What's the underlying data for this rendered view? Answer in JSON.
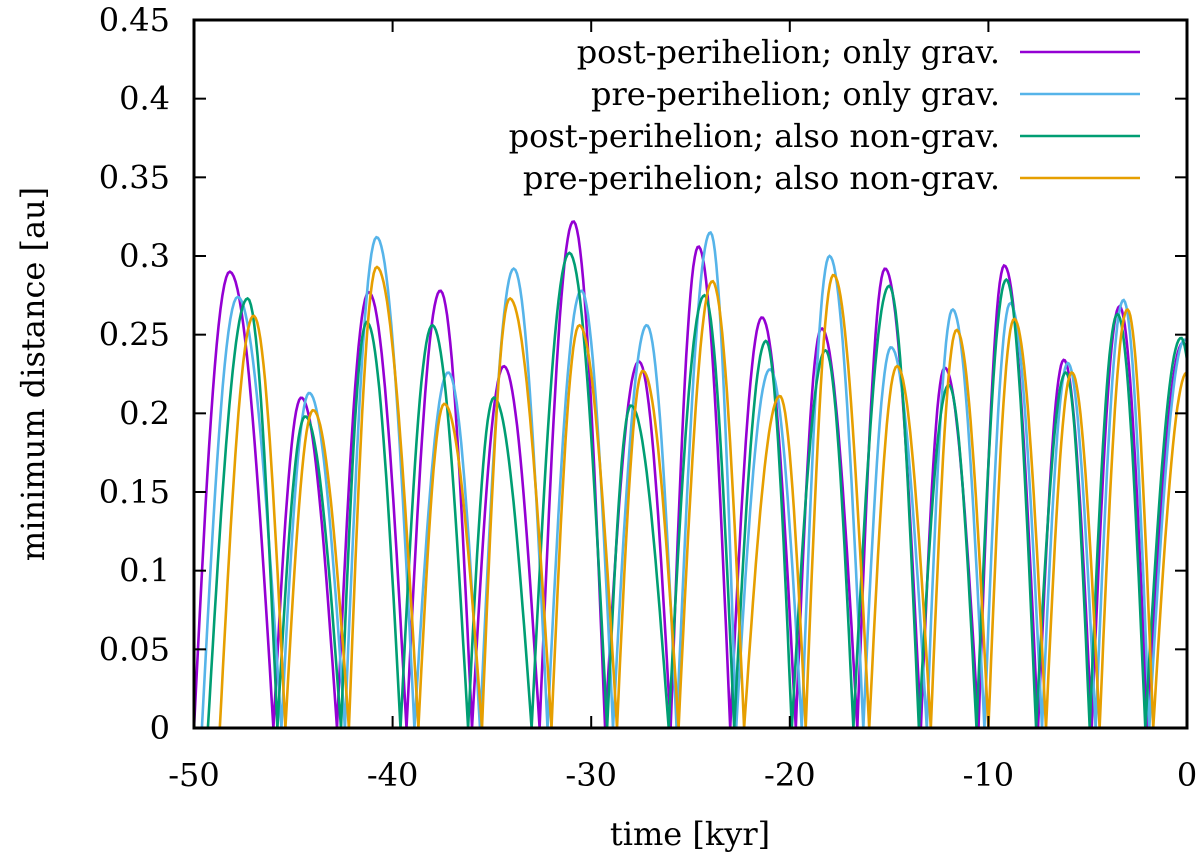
{
  "chart_data": {
    "type": "line",
    "title": "",
    "xlabel": "time [kyr]",
    "ylabel": "minimum distance [au]",
    "xlim": [
      -50,
      0
    ],
    "ylim": [
      0,
      0.45
    ],
    "x_ticks": [
      -50,
      -40,
      -30,
      -20,
      -10,
      0
    ],
    "x_tick_labels": [
      "-50",
      "-40",
      "-30",
      "-20",
      "-10",
      "0"
    ],
    "y_ticks": [
      0,
      0.05,
      0.1,
      0.15,
      0.2,
      0.25,
      0.3,
      0.35,
      0.4,
      0.45
    ],
    "y_tick_labels": [
      "0",
      "0.05",
      "0.1",
      "0.15",
      "0.2",
      "0.25",
      "0.3",
      "0.35",
      "0.4",
      "0.45"
    ],
    "grid": false,
    "legend_position": "top-right",
    "series": [
      {
        "name": "post-perihelion; only grav.",
        "color": "#9400d3",
        "peaks": [
          {
            "x": -48.2,
            "y": 0.29
          },
          {
            "x": -44.6,
            "y": 0.21
          },
          {
            "x": -41.2,
            "y": 0.277
          },
          {
            "x": -37.6,
            "y": 0.278
          },
          {
            "x": -34.4,
            "y": 0.23
          },
          {
            "x": -30.9,
            "y": 0.322
          },
          {
            "x": -27.6,
            "y": 0.233
          },
          {
            "x": -24.6,
            "y": 0.306
          },
          {
            "x": -21.4,
            "y": 0.261
          },
          {
            "x": -18.4,
            "y": 0.254
          },
          {
            "x": -15.2,
            "y": 0.292
          },
          {
            "x": -12.2,
            "y": 0.229
          },
          {
            "x": -9.2,
            "y": 0.294
          },
          {
            "x": -6.2,
            "y": 0.234
          },
          {
            "x": -3.4,
            "y": 0.268
          },
          {
            "x": -0.2,
            "y": 0.245
          }
        ],
        "zeros": [
          -50.0,
          -46.0,
          -42.8,
          -39.3,
          -36.0,
          -32.6,
          -29.3,
          -26.0,
          -23.0,
          -19.7,
          -16.6,
          -13.4,
          -10.5,
          -7.5,
          -4.8,
          -2.0
        ]
      },
      {
        "name": "pre-perihelion; only grav.",
        "color": "#56b4e9",
        "peaks": [
          {
            "x": -47.8,
            "y": 0.274
          },
          {
            "x": -44.2,
            "y": 0.213
          },
          {
            "x": -40.8,
            "y": 0.312
          },
          {
            "x": -37.2,
            "y": 0.226
          },
          {
            "x": -33.9,
            "y": 0.292
          },
          {
            "x": -30.5,
            "y": 0.278
          },
          {
            "x": -27.2,
            "y": 0.256
          },
          {
            "x": -24.0,
            "y": 0.315
          },
          {
            "x": -21.0,
            "y": 0.228
          },
          {
            "x": -18.0,
            "y": 0.3
          },
          {
            "x": -14.9,
            "y": 0.242
          },
          {
            "x": -11.8,
            "y": 0.266
          },
          {
            "x": -8.9,
            "y": 0.27
          },
          {
            "x": -6.0,
            "y": 0.232
          },
          {
            "x": -3.2,
            "y": 0.272
          },
          {
            "x": -0.1,
            "y": 0.247
          }
        ],
        "zeros": [
          -49.6,
          -45.6,
          -42.4,
          -38.9,
          -35.6,
          -32.2,
          -28.9,
          -25.7,
          -22.7,
          -19.4,
          -16.3,
          -13.1,
          -10.2,
          -7.3,
          -4.6,
          -1.9
        ]
      },
      {
        "name": "post-perihelion; also non-grav.",
        "color": "#009e73",
        "peaks": [
          {
            "x": -47.3,
            "y": 0.273
          },
          {
            "x": -44.4,
            "y": 0.198
          },
          {
            "x": -41.3,
            "y": 0.258
          },
          {
            "x": -38.0,
            "y": 0.256
          },
          {
            "x": -34.9,
            "y": 0.21
          },
          {
            "x": -31.1,
            "y": 0.302
          },
          {
            "x": -28.0,
            "y": 0.205
          },
          {
            "x": -24.3,
            "y": 0.275
          },
          {
            "x": -21.2,
            "y": 0.246
          },
          {
            "x": -18.2,
            "y": 0.24
          },
          {
            "x": -15.0,
            "y": 0.281
          },
          {
            "x": -12.0,
            "y": 0.218
          },
          {
            "x": -9.1,
            "y": 0.285
          },
          {
            "x": -6.1,
            "y": 0.226
          },
          {
            "x": -3.5,
            "y": 0.263
          },
          {
            "x": -0.3,
            "y": 0.248
          }
        ],
        "zeros": [
          -49.3,
          -45.8,
          -42.6,
          -39.6,
          -36.2,
          -33.0,
          -29.2,
          -26.1,
          -22.8,
          -19.9,
          -16.8,
          -13.5,
          -10.6,
          -7.6,
          -4.9,
          -2.1
        ]
      },
      {
        "name": "pre-perihelion; also non-grav.",
        "color": "#e69f00",
        "peaks": [
          {
            "x": -47.0,
            "y": 0.262
          },
          {
            "x": -44.0,
            "y": 0.202
          },
          {
            "x": -40.8,
            "y": 0.293
          },
          {
            "x": -37.4,
            "y": 0.206
          },
          {
            "x": -34.1,
            "y": 0.273
          },
          {
            "x": -30.6,
            "y": 0.256
          },
          {
            "x": -27.4,
            "y": 0.227
          },
          {
            "x": -23.9,
            "y": 0.284
          },
          {
            "x": -20.5,
            "y": 0.211
          },
          {
            "x": -17.8,
            "y": 0.288
          },
          {
            "x": -14.6,
            "y": 0.23
          },
          {
            "x": -11.6,
            "y": 0.253
          },
          {
            "x": -8.7,
            "y": 0.26
          },
          {
            "x": -5.8,
            "y": 0.226
          },
          {
            "x": -3.0,
            "y": 0.266
          },
          {
            "x": 0.0,
            "y": 0.226
          }
        ],
        "zeros": [
          -48.7,
          -45.4,
          -42.2,
          -38.7,
          -35.5,
          -32.0,
          -28.7,
          -25.6,
          -22.3,
          -19.2,
          -16.0,
          -12.9,
          -10.0,
          -7.1,
          -4.4,
          -1.7
        ]
      }
    ]
  }
}
